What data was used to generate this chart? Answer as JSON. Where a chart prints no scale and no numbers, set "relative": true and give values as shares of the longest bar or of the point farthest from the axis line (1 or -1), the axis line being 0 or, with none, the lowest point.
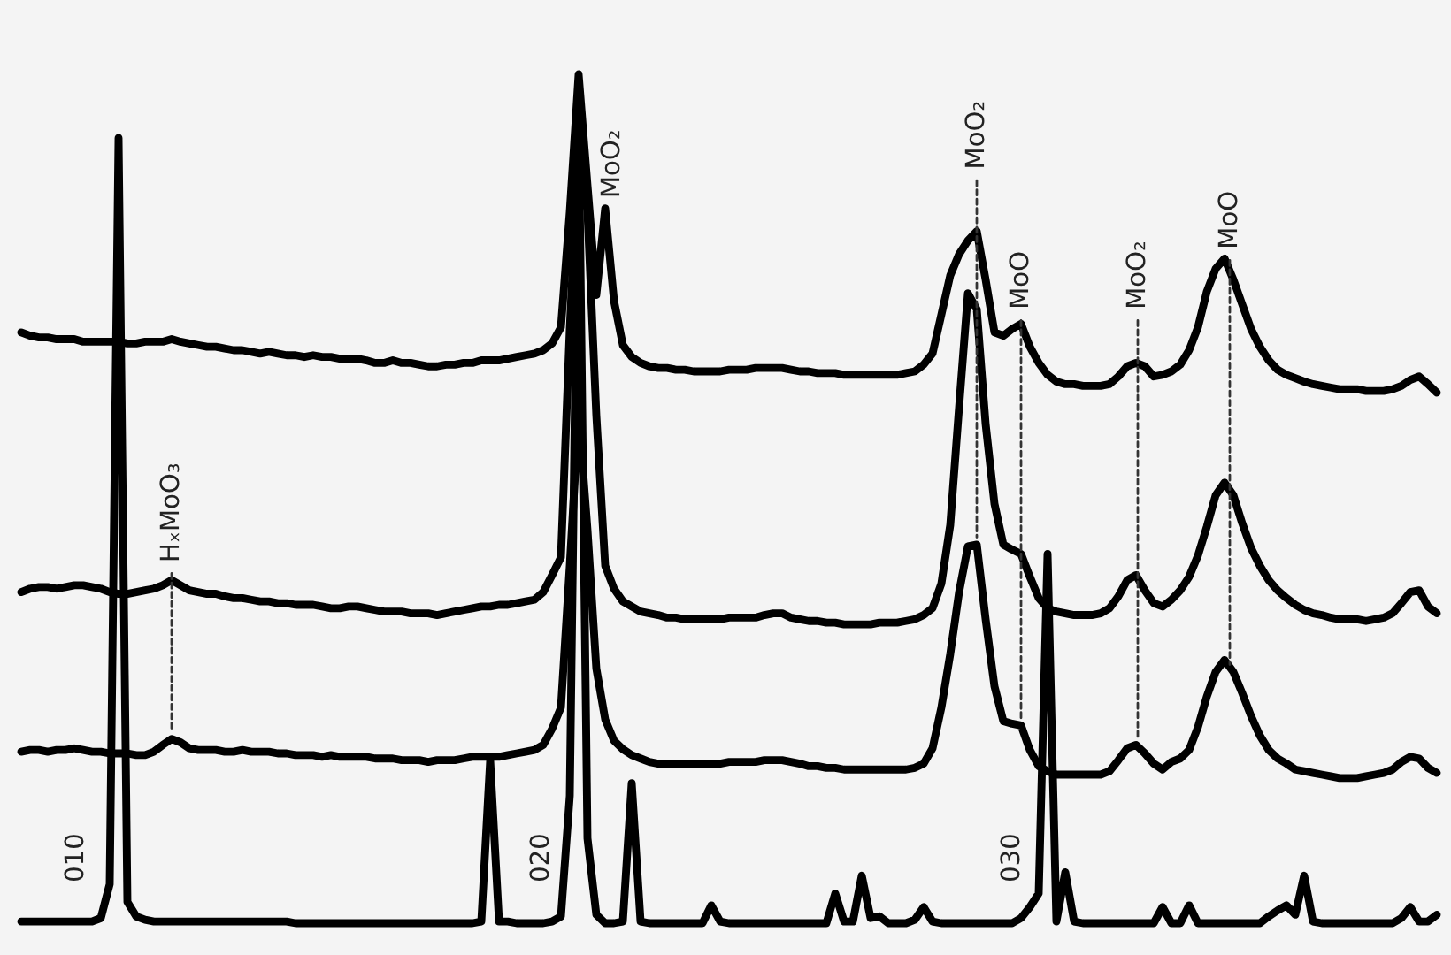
{
  "chart_data": {
    "type": "line",
    "relative": true,
    "categories": [
      null,
      null,
      null,
      null,
      null,
      null,
      null,
      null,
      null,
      null,
      null,
      null,
      null,
      null,
      null,
      null,
      null,
      null,
      null,
      null,
      null,
      null,
      null,
      null,
      null,
      null,
      null,
      null,
      null,
      null,
      null,
      null,
      null,
      null,
      null,
      null,
      null,
      null,
      null,
      null,
      null,
      null,
      null,
      null,
      null,
      null,
      null,
      null,
      null,
      null,
      null,
      null,
      null,
      null,
      null,
      null,
      null,
      null,
      null,
      null,
      null,
      null,
      null,
      null,
      null,
      null,
      null,
      null,
      null,
      null,
      null,
      null,
      null,
      null,
      null,
      null,
      null,
      null,
      null,
      null,
      null,
      null,
      null,
      null,
      null,
      null,
      null,
      null,
      null,
      null,
      null,
      null,
      null,
      null,
      null,
      null,
      null,
      null,
      null,
      null,
      null,
      null,
      null,
      null,
      null,
      null,
      null,
      null,
      null,
      null,
      null,
      null,
      null,
      null,
      null,
      null,
      null,
      null,
      null,
      null,
      null,
      null,
      null,
      null,
      null,
      null,
      null,
      null,
      null,
      null,
      null,
      null,
      null,
      null,
      null,
      null,
      null,
      null,
      null,
      null,
      null,
      null,
      null,
      null,
      null,
      null,
      null,
      null,
      null,
      null,
      null,
      null,
      null,
      null,
      null,
      null,
      null,
      null,
      null,
      null,
      null
    ],
    "series": [
      {
        "color": "#000000",
        "values": [
          0.696,
          0.692,
          0.69,
          0.69,
          0.688,
          0.688,
          0.688,
          0.685,
          0.685,
          0.685,
          0.685,
          0.685,
          0.683,
          0.683,
          0.685,
          0.685,
          0.685,
          0.688,
          0.685,
          0.683,
          0.681,
          0.679,
          0.679,
          0.677,
          0.675,
          0.675,
          0.673,
          0.671,
          0.673,
          0.671,
          0.669,
          0.669,
          0.667,
          0.669,
          0.667,
          0.667,
          0.665,
          0.665,
          0.665,
          0.663,
          0.66,
          0.66,
          0.663,
          0.66,
          0.66,
          0.658,
          0.656,
          0.656,
          0.658,
          0.658,
          0.66,
          0.66,
          0.663,
          0.663,
          0.663,
          0.665,
          0.667,
          0.669,
          0.671,
          0.675,
          0.683,
          0.702,
          0.838,
          1.0,
          0.869,
          0.74,
          0.842,
          0.733,
          0.681,
          0.667,
          0.66,
          0.656,
          0.654,
          0.654,
          0.652,
          0.652,
          0.65,
          0.65,
          0.65,
          0.65,
          0.652,
          0.652,
          0.652,
          0.654,
          0.654,
          0.654,
          0.654,
          0.652,
          0.65,
          0.65,
          0.648,
          0.648,
          0.648,
          0.646,
          0.646,
          0.646,
          0.646,
          0.646,
          0.646,
          0.646,
          0.648,
          0.65,
          0.658,
          0.671,
          0.717,
          0.763,
          0.788,
          0.804,
          0.815,
          0.758,
          0.696,
          0.692,
          0.7,
          0.706,
          0.679,
          0.66,
          0.646,
          0.638,
          0.635,
          0.635,
          0.633,
          0.633,
          0.633,
          0.635,
          0.644,
          0.656,
          0.66,
          0.656,
          0.644,
          0.646,
          0.65,
          0.658,
          0.675,
          0.702,
          0.744,
          0.771,
          0.783,
          0.758,
          0.729,
          0.7,
          0.679,
          0.663,
          0.652,
          0.646,
          0.642,
          0.638,
          0.635,
          0.633,
          0.631,
          0.629,
          0.629,
          0.629,
          0.627,
          0.627,
          0.627,
          0.629,
          0.633,
          0.64,
          0.644,
          0.635,
          0.625
        ]
      },
      {
        "color": "#000000",
        "values": [
          0.39,
          0.394,
          0.396,
          0.396,
          0.394,
          0.396,
          0.398,
          0.398,
          0.396,
          0.394,
          0.39,
          0.388,
          0.388,
          0.39,
          0.392,
          0.394,
          0.398,
          0.404,
          0.398,
          0.392,
          0.39,
          0.388,
          0.388,
          0.385,
          0.383,
          0.383,
          0.381,
          0.379,
          0.379,
          0.377,
          0.377,
          0.375,
          0.375,
          0.375,
          0.373,
          0.371,
          0.371,
          0.373,
          0.373,
          0.371,
          0.369,
          0.367,
          0.367,
          0.367,
          0.365,
          0.365,
          0.365,
          0.363,
          0.365,
          0.367,
          0.369,
          0.371,
          0.373,
          0.373,
          0.375,
          0.375,
          0.377,
          0.379,
          0.381,
          0.39,
          0.41,
          0.431,
          0.7,
          0.92,
          0.838,
          0.598,
          0.421,
          0.394,
          0.379,
          0.373,
          0.367,
          0.365,
          0.363,
          0.36,
          0.36,
          0.358,
          0.358,
          0.358,
          0.358,
          0.358,
          0.36,
          0.36,
          0.36,
          0.36,
          0.363,
          0.365,
          0.365,
          0.36,
          0.358,
          0.356,
          0.356,
          0.354,
          0.354,
          0.352,
          0.352,
          0.352,
          0.352,
          0.354,
          0.354,
          0.354,
          0.356,
          0.358,
          0.363,
          0.371,
          0.4,
          0.469,
          0.608,
          0.742,
          0.723,
          0.588,
          0.494,
          0.446,
          0.44,
          0.435,
          0.408,
          0.383,
          0.371,
          0.367,
          0.365,
          0.363,
          0.363,
          0.363,
          0.365,
          0.371,
          0.385,
          0.404,
          0.41,
          0.392,
          0.377,
          0.373,
          0.381,
          0.392,
          0.408,
          0.433,
          0.467,
          0.504,
          0.519,
          0.504,
          0.471,
          0.442,
          0.421,
          0.404,
          0.392,
          0.383,
          0.375,
          0.369,
          0.365,
          0.363,
          0.36,
          0.358,
          0.358,
          0.358,
          0.356,
          0.358,
          0.36,
          0.365,
          0.377,
          0.39,
          0.392,
          0.373,
          0.365
        ]
      },
      {
        "color": "#000000",
        "values": [
          0.202,
          0.204,
          0.204,
          0.202,
          0.204,
          0.204,
          0.206,
          0.204,
          0.202,
          0.202,
          0.2,
          0.2,
          0.2,
          0.198,
          0.198,
          0.202,
          0.21,
          0.217,
          0.213,
          0.206,
          0.204,
          0.204,
          0.204,
          0.202,
          0.202,
          0.204,
          0.202,
          0.202,
          0.202,
          0.2,
          0.2,
          0.198,
          0.198,
          0.198,
          0.196,
          0.198,
          0.196,
          0.196,
          0.196,
          0.196,
          0.194,
          0.194,
          0.194,
          0.192,
          0.192,
          0.192,
          0.19,
          0.192,
          0.192,
          0.192,
          0.194,
          0.196,
          0.196,
          0.196,
          0.196,
          0.198,
          0.2,
          0.202,
          0.204,
          0.21,
          0.229,
          0.254,
          0.421,
          0.602,
          0.463,
          0.3,
          0.24,
          0.215,
          0.205,
          0.198,
          0.194,
          0.19,
          0.188,
          0.188,
          0.188,
          0.188,
          0.188,
          0.188,
          0.188,
          0.188,
          0.19,
          0.19,
          0.19,
          0.19,
          0.192,
          0.192,
          0.192,
          0.19,
          0.188,
          0.185,
          0.185,
          0.183,
          0.183,
          0.181,
          0.181,
          0.181,
          0.181,
          0.181,
          0.181,
          0.181,
          0.181,
          0.183,
          0.188,
          0.206,
          0.254,
          0.317,
          0.39,
          0.444,
          0.446,
          0.358,
          0.279,
          0.238,
          0.235,
          0.233,
          0.204,
          0.185,
          0.179,
          0.175,
          0.175,
          0.175,
          0.175,
          0.175,
          0.175,
          0.179,
          0.192,
          0.206,
          0.21,
          0.2,
          0.188,
          0.181,
          0.19,
          0.194,
          0.204,
          0.231,
          0.267,
          0.296,
          0.31,
          0.296,
          0.271,
          0.244,
          0.221,
          0.204,
          0.194,
          0.188,
          0.181,
          0.179,
          0.177,
          0.175,
          0.173,
          0.171,
          0.171,
          0.171,
          0.173,
          0.175,
          0.177,
          0.181,
          0.19,
          0.196,
          0.194,
          0.183,
          0.177
        ]
      },
      {
        "color": "#000000",
        "values": [
          0.002,
          0.002,
          0.002,
          0.002,
          0.002,
          0.002,
          0.002,
          0.002,
          0.002,
          0.006,
          0.046,
          0.925,
          0.025,
          0.008,
          0.004,
          0.002,
          0.002,
          0.002,
          0.002,
          0.002,
          0.002,
          0.002,
          0.002,
          0.002,
          0.002,
          0.002,
          0.002,
          0.002,
          0.002,
          0.002,
          0.002,
          0,
          0,
          0,
          0,
          0,
          0,
          0,
          0,
          0,
          0,
          0,
          0,
          0,
          0,
          0,
          0,
          0,
          0,
          0,
          0,
          0,
          0.002,
          0.192,
          0.002,
          0.002,
          0,
          0,
          0,
          0,
          0.002,
          0.008,
          0.15,
          0.95,
          0.1,
          0.01,
          0,
          0,
          0.002,
          0.165,
          0.002,
          0,
          0,
          0,
          0,
          0,
          0,
          0,
          0.021,
          0.002,
          0,
          0,
          0,
          0,
          0,
          0,
          0,
          0,
          0,
          0,
          0,
          0,
          0.035,
          0.002,
          0.002,
          0.056,
          0.006,
          0.008,
          0,
          0,
          0,
          0.004,
          0.019,
          0.002,
          0,
          0,
          0,
          0,
          0,
          0,
          0,
          0,
          0,
          0.006,
          0.019,
          0.035,
          0.435,
          0.002,
          0.06,
          0.002,
          0,
          0,
          0,
          0,
          0,
          0,
          0,
          0,
          0,
          0.019,
          0,
          0,
          0.021,
          0,
          0,
          0,
          0,
          0,
          0,
          0,
          0,
          0.008,
          0.015,
          0.021,
          0.01,
          0.056,
          0.002,
          0,
          0,
          0,
          0,
          0,
          0,
          0,
          0,
          0,
          0.006,
          0.019,
          0.002,
          0.002,
          0.01
        ]
      }
    ],
    "annotations": [
      "010",
      "HₓMoO₃",
      "020",
      "MoO₂",
      "MoO₂",
      "030",
      "MoO",
      "MoO₂",
      "MoO"
    ]
  }
}
